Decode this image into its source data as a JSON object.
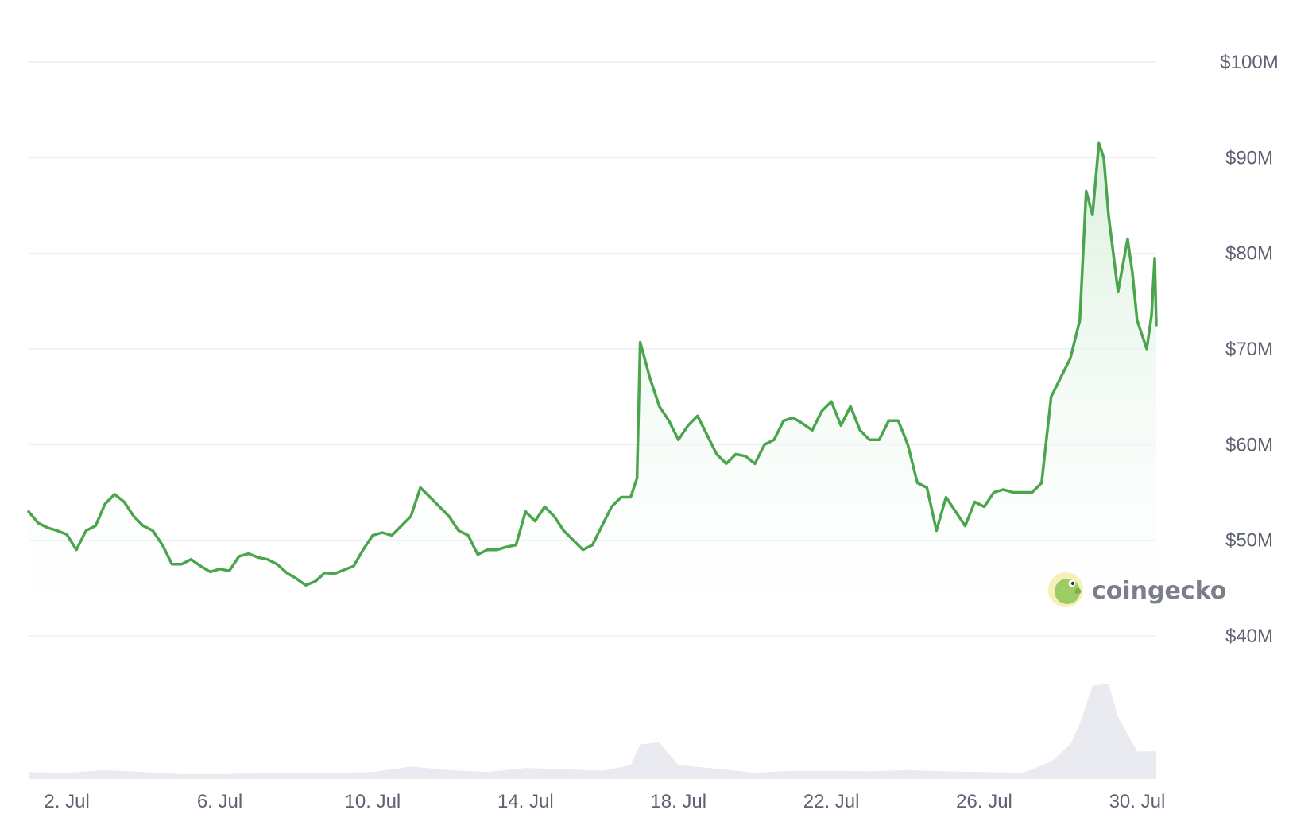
{
  "colors": {
    "line": "#4aa54d",
    "area_top": "#d9f0dc",
    "area_bottom": "#ffffff",
    "grid": "#eceef2",
    "axis_text": "#5d6373",
    "volume": "#e9ebf0"
  },
  "watermark": {
    "text": "coingecko",
    "icon": "gecko-logo-icon"
  },
  "chart_data": {
    "type": "area",
    "xlabel": "",
    "ylabel": "",
    "x_range": [
      "2024-07-01T00:00",
      "2024-07-30T12:00"
    ],
    "ylim": [
      40000000,
      100000000
    ],
    "y_ticks": [
      40000000,
      50000000,
      60000000,
      70000000,
      80000000,
      90000000,
      100000000
    ],
    "y_tick_labels": [
      "$40M",
      "$50M",
      "$60M",
      "$70M",
      "$80M",
      "$90M",
      "$100M"
    ],
    "x_ticks": [
      "2024-07-02",
      "2024-07-06",
      "2024-07-10",
      "2024-07-14",
      "2024-07-18",
      "2024-07-22",
      "2024-07-26",
      "2024-07-30"
    ],
    "x_tick_labels": [
      "2. Jul",
      "6. Jul",
      "10. Jul",
      "14. Jul",
      "18. Jul",
      "22. Jul",
      "26. Jul",
      "30. Jul"
    ],
    "grid": true,
    "legend": "none",
    "y_axis_position": "right",
    "series": [
      {
        "values": [
          [
            "2024-07-01T00:00",
            53.0
          ],
          [
            "2024-07-01T06:00",
            51.8
          ],
          [
            "2024-07-01T12:00",
            51.3
          ],
          [
            "2024-07-01T18:00",
            51.0
          ],
          [
            "2024-07-02T00:00",
            50.6
          ],
          [
            "2024-07-02T06:00",
            49.0
          ],
          [
            "2024-07-02T12:00",
            51.0
          ],
          [
            "2024-07-02T18:00",
            51.5
          ],
          [
            "2024-07-03T00:00",
            53.8
          ],
          [
            "2024-07-03T06:00",
            54.8
          ],
          [
            "2024-07-03T12:00",
            54.0
          ],
          [
            "2024-07-03T18:00",
            52.5
          ],
          [
            "2024-07-04T00:00",
            51.5
          ],
          [
            "2024-07-04T06:00",
            51.0
          ],
          [
            "2024-07-04T12:00",
            49.5
          ],
          [
            "2024-07-04T18:00",
            47.5
          ],
          [
            "2024-07-05T00:00",
            47.5
          ],
          [
            "2024-07-05T06:00",
            48.0
          ],
          [
            "2024-07-05T12:00",
            47.3
          ],
          [
            "2024-07-05T18:00",
            46.7
          ],
          [
            "2024-07-06T00:00",
            47.0
          ],
          [
            "2024-07-06T06:00",
            46.8
          ],
          [
            "2024-07-06T12:00",
            48.3
          ],
          [
            "2024-07-06T18:00",
            48.6
          ],
          [
            "2024-07-07T00:00",
            48.2
          ],
          [
            "2024-07-07T06:00",
            48.0
          ],
          [
            "2024-07-07T12:00",
            47.5
          ],
          [
            "2024-07-07T18:00",
            46.6
          ],
          [
            "2024-07-08T00:00",
            46.0
          ],
          [
            "2024-07-08T06:00",
            45.3
          ],
          [
            "2024-07-08T12:00",
            45.7
          ],
          [
            "2024-07-08T18:00",
            46.6
          ],
          [
            "2024-07-09T00:00",
            46.5
          ],
          [
            "2024-07-09T06:00",
            46.9
          ],
          [
            "2024-07-09T12:00",
            47.3
          ],
          [
            "2024-07-09T18:00",
            49.0
          ],
          [
            "2024-07-10T00:00",
            50.5
          ],
          [
            "2024-07-10T06:00",
            50.8
          ],
          [
            "2024-07-10T12:00",
            50.5
          ],
          [
            "2024-07-10T18:00",
            51.5
          ],
          [
            "2024-07-11T00:00",
            52.5
          ],
          [
            "2024-07-11T06:00",
            55.5
          ],
          [
            "2024-07-11T12:00",
            54.5
          ],
          [
            "2024-07-11T18:00",
            53.5
          ],
          [
            "2024-07-12T00:00",
            52.5
          ],
          [
            "2024-07-12T06:00",
            51.0
          ],
          [
            "2024-07-12T12:00",
            50.5
          ],
          [
            "2024-07-12T18:00",
            48.5
          ],
          [
            "2024-07-13T00:00",
            49.0
          ],
          [
            "2024-07-13T06:00",
            49.0
          ],
          [
            "2024-07-13T12:00",
            49.3
          ],
          [
            "2024-07-13T18:00",
            49.5
          ],
          [
            "2024-07-14T00:00",
            53.0
          ],
          [
            "2024-07-14T06:00",
            52.0
          ],
          [
            "2024-07-14T12:00",
            53.5
          ],
          [
            "2024-07-14T18:00",
            52.5
          ],
          [
            "2024-07-15T00:00",
            51.0
          ],
          [
            "2024-07-15T06:00",
            50.0
          ],
          [
            "2024-07-15T12:00",
            49.0
          ],
          [
            "2024-07-15T18:00",
            49.5
          ],
          [
            "2024-07-16T00:00",
            51.5
          ],
          [
            "2024-07-16T06:00",
            53.5
          ],
          [
            "2024-07-16T12:00",
            54.5
          ],
          [
            "2024-07-16T18:00",
            54.5
          ],
          [
            "2024-07-16T22:00",
            56.5
          ],
          [
            "2024-07-17T00:00",
            70.7
          ],
          [
            "2024-07-17T06:00",
            67.0
          ],
          [
            "2024-07-17T12:00",
            64.0
          ],
          [
            "2024-07-17T18:00",
            62.5
          ],
          [
            "2024-07-18T00:00",
            60.5
          ],
          [
            "2024-07-18T06:00",
            62.0
          ],
          [
            "2024-07-18T12:00",
            63.0
          ],
          [
            "2024-07-18T18:00",
            61.0
          ],
          [
            "2024-07-19T00:00",
            59.0
          ],
          [
            "2024-07-19T06:00",
            58.0
          ],
          [
            "2024-07-19T12:00",
            59.0
          ],
          [
            "2024-07-19T18:00",
            58.8
          ],
          [
            "2024-07-20T00:00",
            58.0
          ],
          [
            "2024-07-20T06:00",
            60.0
          ],
          [
            "2024-07-20T12:00",
            60.5
          ],
          [
            "2024-07-20T18:00",
            62.5
          ],
          [
            "2024-07-21T00:00",
            62.8
          ],
          [
            "2024-07-21T06:00",
            62.2
          ],
          [
            "2024-07-21T12:00",
            61.5
          ],
          [
            "2024-07-21T18:00",
            63.5
          ],
          [
            "2024-07-22T00:00",
            64.5
          ],
          [
            "2024-07-22T06:00",
            62.0
          ],
          [
            "2024-07-22T12:00",
            64.0
          ],
          [
            "2024-07-22T18:00",
            61.5
          ],
          [
            "2024-07-23T00:00",
            60.5
          ],
          [
            "2024-07-23T06:00",
            60.5
          ],
          [
            "2024-07-23T12:00",
            62.5
          ],
          [
            "2024-07-23T18:00",
            62.5
          ],
          [
            "2024-07-24T00:00",
            60.0
          ],
          [
            "2024-07-24T06:00",
            56.0
          ],
          [
            "2024-07-24T12:00",
            55.5
          ],
          [
            "2024-07-24T18:00",
            51.0
          ],
          [
            "2024-07-25T00:00",
            54.5
          ],
          [
            "2024-07-25T06:00",
            53.0
          ],
          [
            "2024-07-25T12:00",
            51.5
          ],
          [
            "2024-07-25T18:00",
            54.0
          ],
          [
            "2024-07-26T00:00",
            53.5
          ],
          [
            "2024-07-26T06:00",
            55.0
          ],
          [
            "2024-07-26T12:00",
            55.3
          ],
          [
            "2024-07-26T18:00",
            55.0
          ],
          [
            "2024-07-27T00:00",
            55.0
          ],
          [
            "2024-07-27T06:00",
            55.0
          ],
          [
            "2024-07-27T12:00",
            56.0
          ],
          [
            "2024-07-27T18:00",
            65.0
          ],
          [
            "2024-07-28T00:00",
            67.0
          ],
          [
            "2024-07-28T06:00",
            69.0
          ],
          [
            "2024-07-28T12:00",
            73.0
          ],
          [
            "2024-07-28T16:00",
            86.5
          ],
          [
            "2024-07-28T20:00",
            84.0
          ],
          [
            "2024-07-29T00:00",
            91.5
          ],
          [
            "2024-07-29T03:00",
            90.0
          ],
          [
            "2024-07-29T06:00",
            84.0
          ],
          [
            "2024-07-29T12:00",
            76.0
          ],
          [
            "2024-07-29T18:00",
            81.5
          ],
          [
            "2024-07-29T21:00",
            78.0
          ],
          [
            "2024-07-30T00:00",
            73.0
          ],
          [
            "2024-07-30T06:00",
            70.0
          ],
          [
            "2024-07-30T09:00",
            73.5
          ],
          [
            "2024-07-30T11:00",
            79.5
          ],
          [
            "2024-07-30T12:00",
            72.5
          ]
        ]
      }
    ],
    "volume": {
      "values": [
        [
          "2024-07-01T00:00",
          1.0
        ],
        [
          "2024-07-02T00:00",
          0.9
        ],
        [
          "2024-07-03T00:00",
          1.3
        ],
        [
          "2024-07-04T00:00",
          1.0
        ],
        [
          "2024-07-05T00:00",
          0.7
        ],
        [
          "2024-07-06T00:00",
          0.7
        ],
        [
          "2024-07-07T00:00",
          0.8
        ],
        [
          "2024-07-08T00:00",
          0.8
        ],
        [
          "2024-07-09T00:00",
          0.9
        ],
        [
          "2024-07-10T00:00",
          1.0
        ],
        [
          "2024-07-11T00:00",
          1.8
        ],
        [
          "2024-07-12T00:00",
          1.3
        ],
        [
          "2024-07-13T00:00",
          1.0
        ],
        [
          "2024-07-14T00:00",
          1.6
        ],
        [
          "2024-07-15T00:00",
          1.4
        ],
        [
          "2024-07-16T00:00",
          1.2
        ],
        [
          "2024-07-16T18:00",
          2.0
        ],
        [
          "2024-07-17T00:00",
          5.0
        ],
        [
          "2024-07-17T12:00",
          5.3
        ],
        [
          "2024-07-18T00:00",
          2.0
        ],
        [
          "2024-07-19T00:00",
          1.5
        ],
        [
          "2024-07-20T00:00",
          0.9
        ],
        [
          "2024-07-21T00:00",
          1.2
        ],
        [
          "2024-07-22T00:00",
          1.2
        ],
        [
          "2024-07-23T00:00",
          1.1
        ],
        [
          "2024-07-24T00:00",
          1.3
        ],
        [
          "2024-07-25T00:00",
          1.1
        ],
        [
          "2024-07-26T00:00",
          1.0
        ],
        [
          "2024-07-27T00:00",
          0.9
        ],
        [
          "2024-07-27T18:00",
          2.5
        ],
        [
          "2024-07-28T06:00",
          5.0
        ],
        [
          "2024-07-28T12:00",
          8.0
        ],
        [
          "2024-07-28T20:00",
          13.5
        ],
        [
          "2024-07-29T06:00",
          13.8
        ],
        [
          "2024-07-29T12:00",
          9.0
        ],
        [
          "2024-07-30T00:00",
          4.0
        ],
        [
          "2024-07-30T12:00",
          4.0
        ]
      ]
    }
  }
}
